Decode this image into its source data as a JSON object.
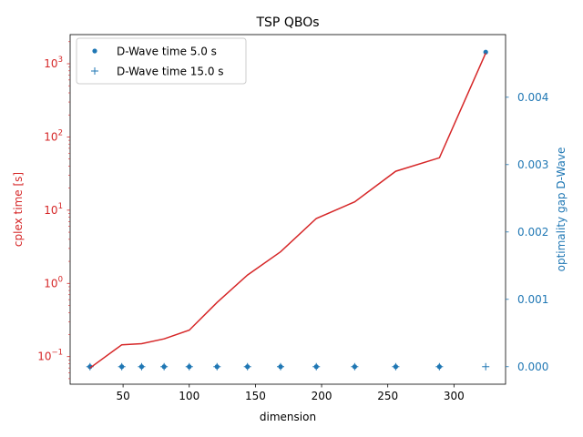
{
  "chart_data": {
    "type": "line",
    "title": "TSP QBOs",
    "xlabel": "dimension",
    "ylabel_left": "cplex time [s]",
    "ylabel_right": "optimality gap D-Wave",
    "xlim": [
      10,
      339
    ],
    "ylim_left_log": [
      0.042,
      2500
    ],
    "ylim_right": [
      -0.00026,
      0.00493
    ],
    "x_ticks": [
      50,
      100,
      150,
      200,
      250,
      300
    ],
    "y_left_ticks": [
      {
        "value": 0.1,
        "base": "10",
        "exp": "−1"
      },
      {
        "value": 1,
        "base": "10",
        "exp": "0"
      },
      {
        "value": 10,
        "base": "10",
        "exp": "1"
      },
      {
        "value": 100,
        "base": "10",
        "exp": "2"
      },
      {
        "value": 1000,
        "base": "10",
        "exp": "3"
      }
    ],
    "y_right_ticks": [
      "0.000",
      "0.001",
      "0.002",
      "0.003",
      "0.004"
    ],
    "colors": {
      "cplex": "#d62728",
      "dwave": "#1f77b4",
      "axis": "#000000"
    },
    "legend_position": "upper-left",
    "series": [
      {
        "name": "cplex",
        "axis": "left",
        "style": "line",
        "x": [
          25,
          49,
          64,
          81,
          100,
          121,
          144,
          169,
          196,
          225,
          256,
          289,
          324
        ],
        "y": [
          0.07,
          0.145,
          0.15,
          0.175,
          0.23,
          0.55,
          1.3,
          2.7,
          7.7,
          13,
          34,
          52,
          1400
        ]
      },
      {
        "name": "D-Wave time 5.0 s",
        "axis": "right",
        "style": "dot",
        "x": [
          25,
          49,
          64,
          81,
          100,
          121,
          144,
          169,
          196,
          225,
          256,
          289,
          324
        ],
        "y": [
          0,
          0,
          0,
          0,
          0,
          0,
          0,
          0,
          0,
          0,
          0,
          0,
          0.00467
        ]
      },
      {
        "name": "D-Wave time 15.0 s",
        "axis": "right",
        "style": "plus",
        "x": [
          25,
          49,
          64,
          81,
          100,
          121,
          144,
          169,
          196,
          225,
          256,
          289,
          324
        ],
        "y": [
          0,
          0,
          0,
          0,
          0,
          0,
          0,
          0,
          0,
          0,
          0,
          0,
          0
        ]
      }
    ]
  }
}
